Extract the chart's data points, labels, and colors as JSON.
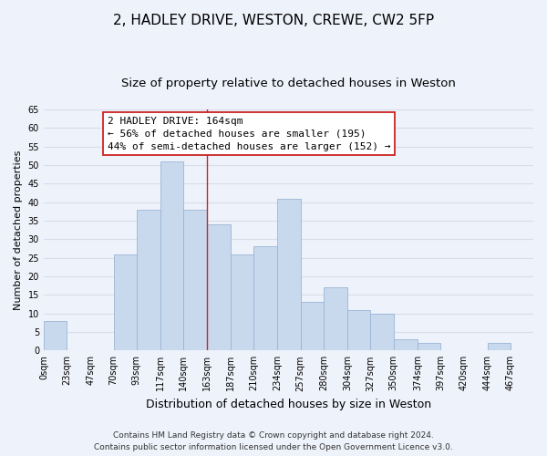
{
  "title": "2, HADLEY DRIVE, WESTON, CREWE, CW2 5FP",
  "subtitle": "Size of property relative to detached houses in Weston",
  "xlabel": "Distribution of detached houses by size in Weston",
  "ylabel": "Number of detached properties",
  "bar_labels": [
    "0sqm",
    "23sqm",
    "47sqm",
    "70sqm",
    "93sqm",
    "117sqm",
    "140sqm",
    "163sqm",
    "187sqm",
    "210sqm",
    "234sqm",
    "257sqm",
    "280sqm",
    "304sqm",
    "327sqm",
    "350sqm",
    "374sqm",
    "397sqm",
    "420sqm",
    "444sqm",
    "467sqm"
  ],
  "bar_values": [
    8,
    0,
    0,
    26,
    38,
    51,
    38,
    34,
    26,
    28,
    41,
    13,
    17,
    11,
    10,
    3,
    2,
    0,
    0,
    2,
    0
  ],
  "bar_color": "#c8d9ee",
  "bar_edge_color": "#9ab4d4",
  "bin_edges": [
    0,
    23,
    47,
    70,
    93,
    117,
    140,
    163,
    187,
    210,
    234,
    257,
    280,
    304,
    327,
    350,
    374,
    397,
    420,
    444,
    467,
    490
  ],
  "property_line_x": 163,
  "ylim": [
    0,
    65
  ],
  "yticks": [
    0,
    5,
    10,
    15,
    20,
    25,
    30,
    35,
    40,
    45,
    50,
    55,
    60,
    65
  ],
  "annotation_title": "2 HADLEY DRIVE: 164sqm",
  "annotation_line1": "← 56% of detached houses are smaller (195)",
  "annotation_line2": "44% of semi-detached houses are larger (152) →",
  "annotation_box_facecolor": "#ffffff",
  "annotation_box_edgecolor": "#cc2222",
  "footer_line1": "Contains HM Land Registry data © Crown copyright and database right 2024.",
  "footer_line2": "Contains public sector information licensed under the Open Government Licence v3.0.",
  "background_color": "#eef2fa",
  "grid_color": "#d8dde8",
  "line_color": "#cc2222",
  "title_fontsize": 11,
  "subtitle_fontsize": 9.5,
  "xlabel_fontsize": 9,
  "ylabel_fontsize": 8,
  "tick_fontsize": 7,
  "annotation_fontsize": 8,
  "footer_fontsize": 6.5
}
